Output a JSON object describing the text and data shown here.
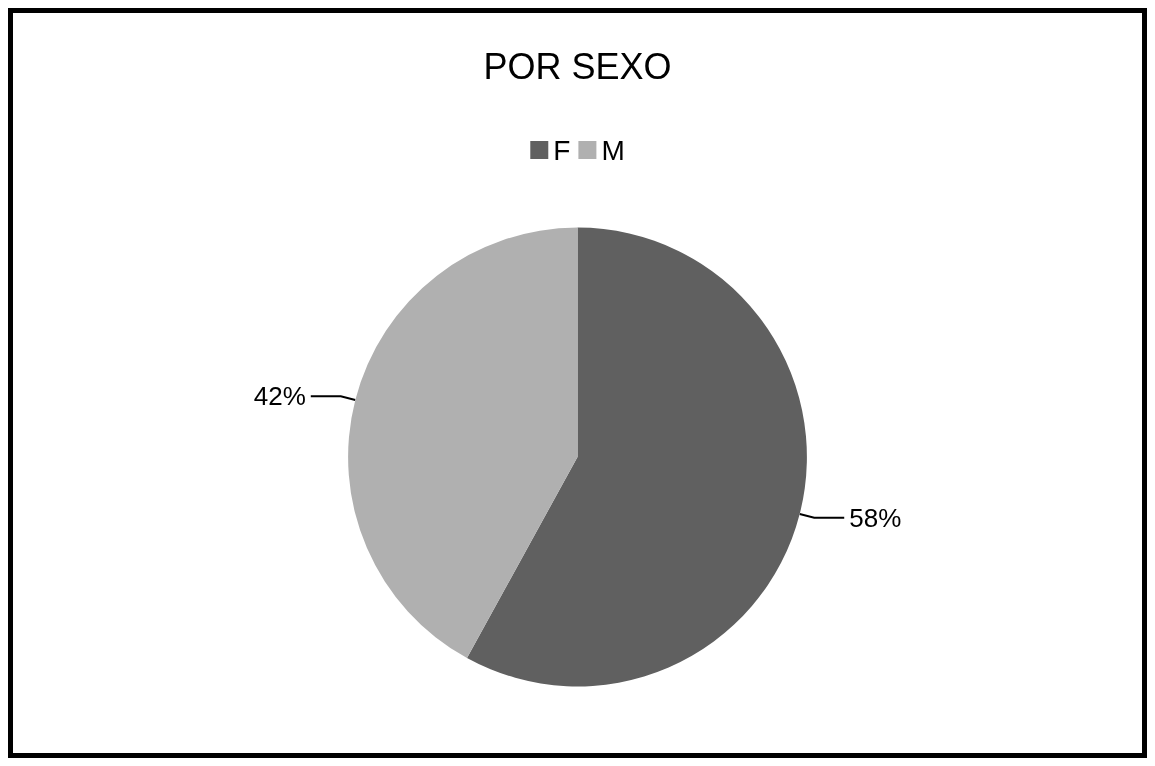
{
  "chart_data": {
    "type": "pie",
    "title": "POR SEXO",
    "categories": [
      "F",
      "M"
    ],
    "values": [
      58,
      42
    ],
    "colors": [
      "#606060",
      "#b0b0b0"
    ],
    "value_labels": [
      "58%",
      "42%"
    ],
    "legend": "top"
  }
}
